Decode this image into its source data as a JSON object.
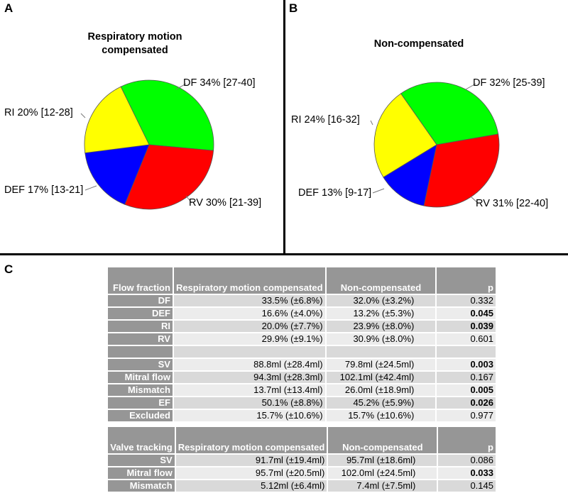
{
  "panels": {
    "a": "A",
    "b": "B",
    "c": "C"
  },
  "chart_data": [
    {
      "type": "pie",
      "title_line1": "Respiratory motion",
      "title_line2": "compensated",
      "slices": [
        {
          "name": "DF",
          "value": 34,
          "ci": "[27-40]",
          "label": "DF 34% [27-40]",
          "color": "#00ff00"
        },
        {
          "name": "RV",
          "value": 30,
          "ci": "[21-39]",
          "label": "RV 30% [21-39]",
          "color": "#ff0000"
        },
        {
          "name": "DEF",
          "value": 17,
          "ci": "[13-21]",
          "label": "DEF 17% [13-21]",
          "color": "#0000ff"
        },
        {
          "name": "RI",
          "value": 20,
          "ci": "[12-28]",
          "label": "RI 20% [12-28]",
          "color": "#ffff00"
        }
      ]
    },
    {
      "type": "pie",
      "title_line1": "Non-compensated",
      "title_line2": "",
      "slices": [
        {
          "name": "DF",
          "value": 32,
          "ci": "[25-39]",
          "label": "DF 32% [25-39]",
          "color": "#00ff00"
        },
        {
          "name": "RV",
          "value": 31,
          "ci": "[22-40]",
          "label": "RV 31% [22-40]",
          "color": "#ff0000"
        },
        {
          "name": "DEF",
          "value": 13,
          "ci": "[9-17]",
          "label": "DEF 13% [9-17]",
          "color": "#0000ff"
        },
        {
          "name": "RI",
          "value": 24,
          "ci": "[16-32]",
          "label": "RI 24% [16-32]",
          "color": "#ffff00"
        }
      ]
    }
  ],
  "table1": {
    "header": [
      "Flow fraction",
      "Respiratory motion compensated",
      "Non-compensated",
      "p"
    ],
    "rows": [
      {
        "label": "DF",
        "comp": "33.5% (±6.8%)",
        "noncomp": "32.0% (±3.2%)",
        "p": "0.332",
        "bold": false
      },
      {
        "label": "DEF",
        "comp": "16.6% (±4.0%)",
        "noncomp": "13.2% (±5.3%)",
        "p": "0.045",
        "bold": true
      },
      {
        "label": "RI",
        "comp": "20.0% (±7.7%)",
        "noncomp": "23.9% (±8.0%)",
        "p": "0.039",
        "bold": true
      },
      {
        "label": "RV",
        "comp": "29.9% (±9.1%)",
        "noncomp": "30.9% (±8.0%)",
        "p": "0.601",
        "bold": false
      },
      {
        "label": "",
        "comp": "",
        "noncomp": "",
        "p": "",
        "bold": false,
        "blank": true
      },
      {
        "label": "SV",
        "comp": "88.8ml (±28.4ml)",
        "noncomp": "79.8ml (±24.5ml)",
        "p": "0.003",
        "bold": true
      },
      {
        "label": "Mitral flow",
        "comp": "94.3ml (±28.3ml)",
        "noncomp": "102.1ml (±42.4ml)",
        "p": "0.167",
        "bold": false
      },
      {
        "label": "Mismatch",
        "comp": "13.7ml (±13.4ml)",
        "noncomp": "26.0ml (±18.9ml)",
        "p": "0.005",
        "bold": true
      },
      {
        "label": "EF",
        "comp": "50.1% (±8.8%)",
        "noncomp": "45.2% (±5.9%)",
        "p": "0.026",
        "bold": true
      },
      {
        "label": "Excluded",
        "comp": "15.7% (±10.6%)",
        "noncomp": "15.7% (±10.6%)",
        "p": "0.977",
        "bold": false
      }
    ]
  },
  "table2": {
    "header": [
      "Valve tracking",
      "Respiratory motion compensated",
      "Non-compensated",
      "p"
    ],
    "rows": [
      {
        "label": "SV",
        "comp": "91.7ml (±19.4ml)",
        "noncomp": "95.7ml (±18.6ml)",
        "p": "0.086",
        "bold": false
      },
      {
        "label": "Mitral flow",
        "comp": "95.7ml (±20.5ml)",
        "noncomp": "102.0ml (±24.5ml)",
        "p": "0.033",
        "bold": true
      },
      {
        "label": "Mismatch",
        "comp": "5.12ml (±6.4ml)",
        "noncomp": "7.4ml (±7.5ml)",
        "p": "0.145",
        "bold": false
      }
    ]
  }
}
